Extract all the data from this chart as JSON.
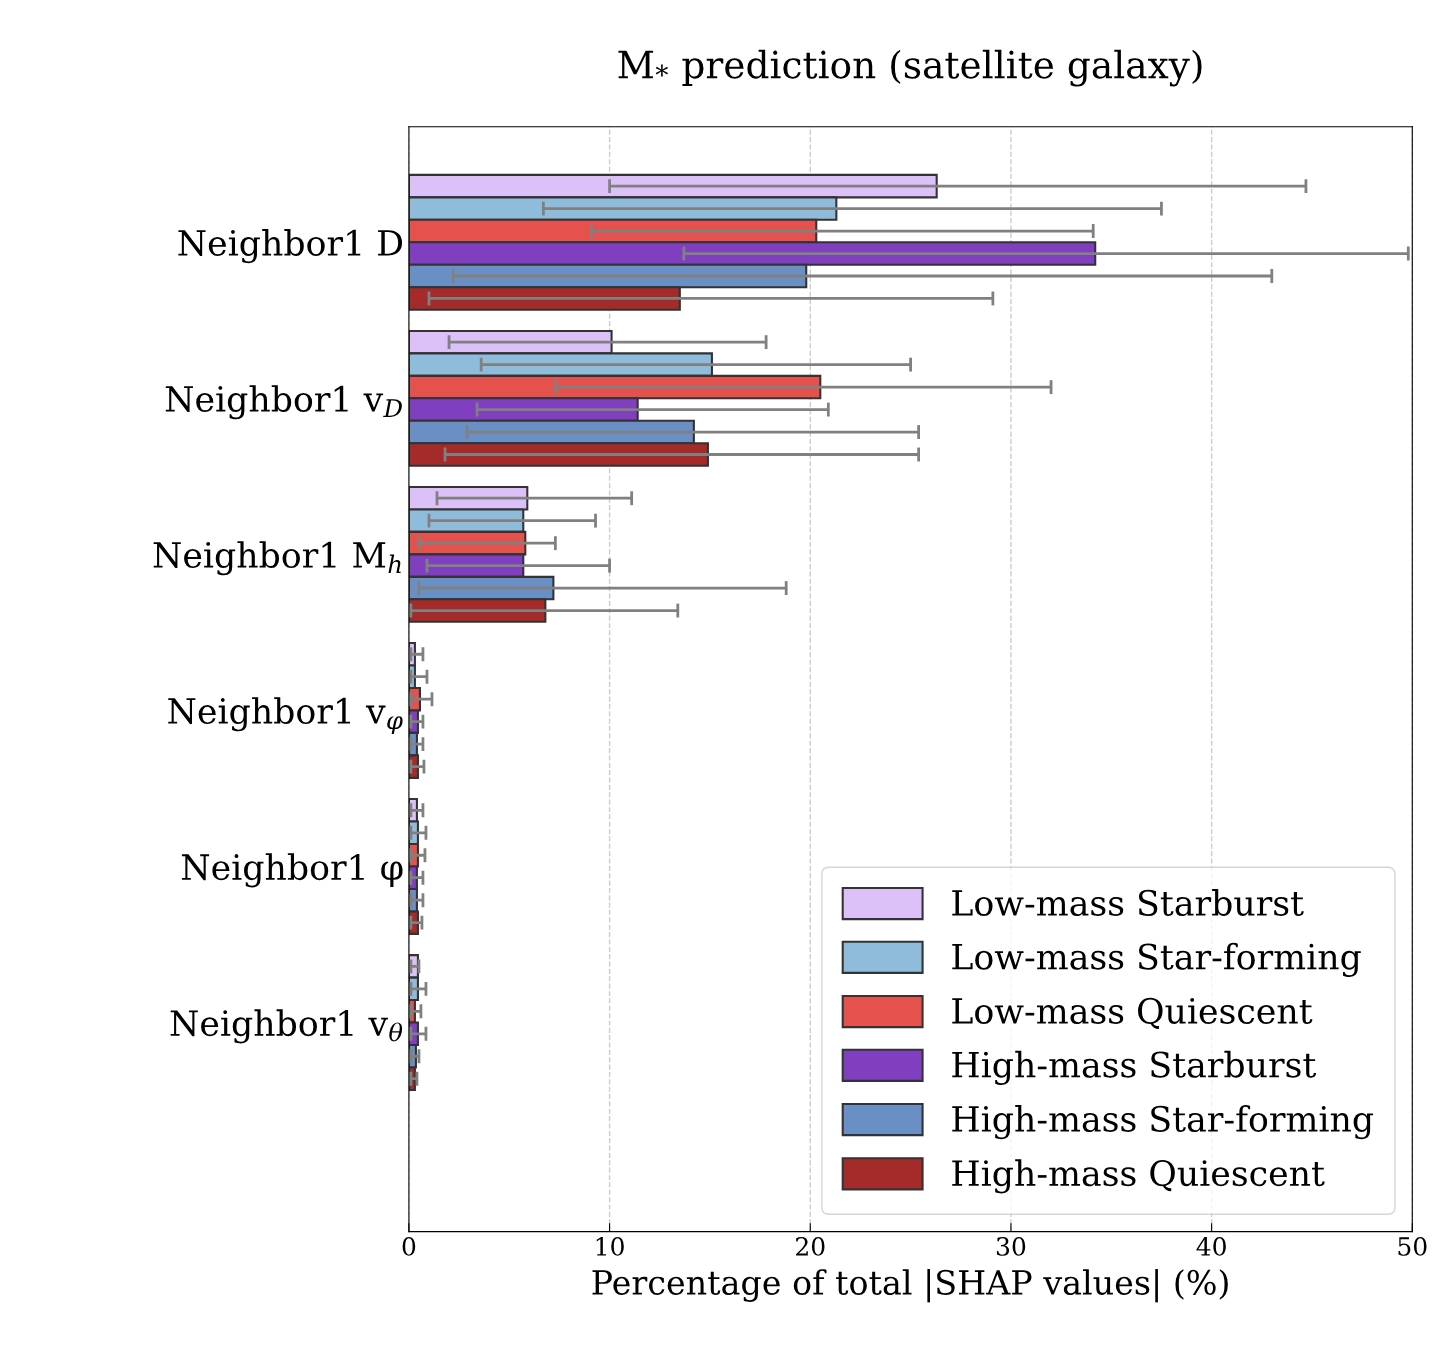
{
  "chart_data": {
    "type": "bar",
    "orientation": "horizontal",
    "title": "M$_{*}$ prediction (satellite galaxy)",
    "xlabel": "Percentage of total |SHAP values| (%)",
    "categories": [
      "Neighbor1 D",
      "Neighbor1 v$_{D}$",
      "Neighbor1 M$_{h}$",
      "Neighbor1 v$_{φ}$",
      "Neighbor1 φ",
      "Neighbor1 v$_{θ}$"
    ],
    "series": [
      {
        "name": "Low-mass Starburst",
        "color": "#dcc0f8",
        "values": [
          26.3,
          10.1,
          5.9,
          0.3,
          0.4,
          0.45
        ],
        "errors": [
          [
            10.0,
            44.7
          ],
          [
            2.0,
            17.8
          ],
          [
            1.4,
            11.1
          ],
          [
            0.1,
            0.7
          ],
          [
            0.1,
            0.7
          ],
          [
            0.1,
            0.5
          ]
        ]
      },
      {
        "name": "Low-mass Star-forming",
        "color": "#8fbcdb",
        "values": [
          21.3,
          15.1,
          5.7,
          0.3,
          0.45,
          0.45
        ],
        "errors": [
          [
            6.7,
            37.5
          ],
          [
            3.6,
            25.0
          ],
          [
            1.0,
            9.3
          ],
          [
            0.1,
            0.9
          ],
          [
            0.1,
            0.85
          ],
          [
            0.1,
            0.85
          ]
        ]
      },
      {
        "name": "Low-mass Quiescent",
        "color": "#e5524e",
        "values": [
          20.3,
          20.5,
          5.8,
          0.55,
          0.45,
          0.3
        ],
        "errors": [
          [
            9.1,
            34.1
          ],
          [
            7.3,
            32.0
          ],
          [
            0.5,
            7.3
          ],
          [
            0.1,
            1.15
          ],
          [
            0.1,
            0.8
          ],
          [
            0.1,
            0.6
          ]
        ]
      },
      {
        "name": "High-mass Starburst",
        "color": "#7f3fbf",
        "values": [
          34.2,
          11.4,
          5.7,
          0.45,
          0.4,
          0.45
        ],
        "errors": [
          [
            13.7,
            49.8
          ],
          [
            3.4,
            20.9
          ],
          [
            0.9,
            10.0
          ],
          [
            0.1,
            0.7
          ],
          [
            0.1,
            0.7
          ],
          [
            0.1,
            0.85
          ]
        ]
      },
      {
        "name": "High-mass Star-forming",
        "color": "#6a8fc4",
        "values": [
          19.8,
          14.2,
          7.2,
          0.4,
          0.4,
          0.35
        ],
        "errors": [
          [
            2.2,
            43.0
          ],
          [
            2.9,
            25.4
          ],
          [
            0.5,
            18.8
          ],
          [
            0.1,
            0.7
          ],
          [
            0.1,
            0.7
          ],
          [
            0.1,
            0.5
          ]
        ]
      },
      {
        "name": "High-mass Quiescent",
        "color": "#a52a2a",
        "values": [
          13.5,
          14.9,
          6.8,
          0.45,
          0.45,
          0.3
        ],
        "errors": [
          [
            1.0,
            29.1
          ],
          [
            1.8,
            25.4
          ],
          [
            0.1,
            13.4
          ],
          [
            0.1,
            0.75
          ],
          [
            0.1,
            0.65
          ],
          [
            0.1,
            0.4
          ]
        ]
      }
    ],
    "xlim": [
      0,
      50
    ],
    "xticks": [
      0,
      10,
      20,
      30,
      40,
      50
    ],
    "grid": "x",
    "legend": "bottom right"
  }
}
